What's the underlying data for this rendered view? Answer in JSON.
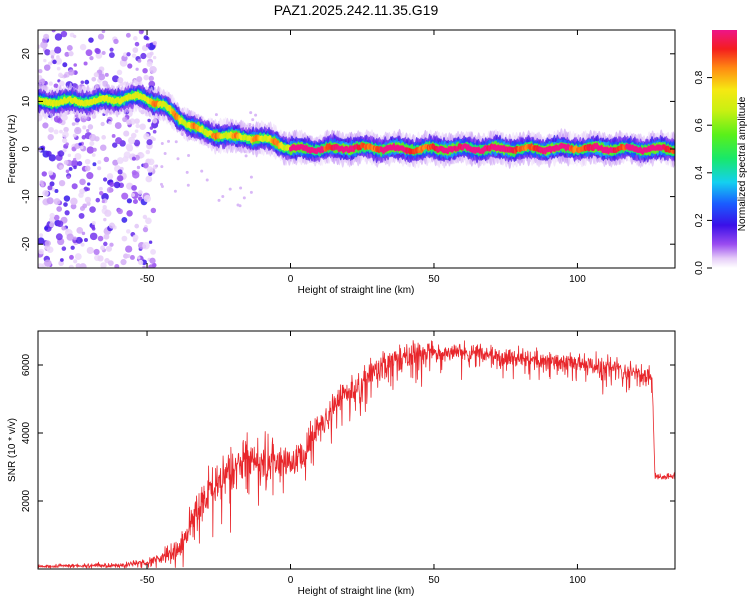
{
  "title": "PAZ1.2025.242.11.35.G19",
  "colors": {
    "signal": "#e8262b",
    "frame": "#000000",
    "background": "#ffffff",
    "noise": "#b07af0"
  },
  "chart_data": [
    {
      "type": "heatmap",
      "name": "spectrogram",
      "xlabel": "Height of straight line (km)",
      "ylabel": "Frequency (Hz)",
      "xlim": [
        -88,
        134
      ],
      "ylim": [
        -25,
        25
      ],
      "xticks": [
        -50,
        0,
        50,
        100
      ],
      "yticks": [
        -20,
        -10,
        0,
        10,
        20
      ],
      "colorbar": {
        "label": "Normalized spectral amplitude",
        "range": [
          0.0,
          1.0
        ],
        "ticks": [
          "0.0",
          "0.2",
          "0.4",
          "0.6",
          "0.8"
        ],
        "tick_values": [
          0.0,
          0.2,
          0.4,
          0.6,
          0.8
        ]
      },
      "ridge": {
        "x": [
          -88,
          -70,
          -60,
          -52,
          -48,
          -44,
          -40,
          -35,
          -30,
          -25,
          -20,
          -15,
          -10,
          -5,
          0,
          10,
          20,
          40,
          60,
          80,
          100,
          120,
          134
        ],
        "freq_hz": [
          10,
          10,
          10.5,
          11,
          10,
          9,
          7,
          5,
          3.5,
          3,
          2.5,
          2.5,
          2,
          1.5,
          0,
          0,
          0.3,
          0,
          0.1,
          0,
          0.2,
          0,
          0
        ]
      },
      "noise_region_x": [
        -88,
        -50
      ]
    },
    {
      "type": "line",
      "name": "snr",
      "xlabel": "Height of straight line (km)",
      "ylabel": "SNR (10 * v/v)",
      "xlim": [
        -88,
        134
      ],
      "ylim": [
        0,
        7000
      ],
      "xticks": [
        -50,
        0,
        50,
        100
      ],
      "yticks": [
        2000,
        4000,
        6000
      ],
      "trend": {
        "x": [
          -88,
          -60,
          -50,
          -45,
          -40,
          -37,
          -35,
          -30,
          -25,
          -20,
          -15,
          -10,
          -5,
          0,
          5,
          10,
          15,
          20,
          25,
          30,
          35,
          40,
          50,
          60,
          70,
          80,
          90,
          100,
          110,
          120,
          125,
          126,
          127,
          130,
          134
        ],
        "y": [
          80,
          110,
          200,
          350,
          500,
          900,
          1500,
          2100,
          2600,
          3000,
          3300,
          3300,
          3100,
          3000,
          3500,
          4200,
          4700,
          5200,
          5600,
          5900,
          6100,
          6250,
          6350,
          6380,
          6300,
          6200,
          6100,
          6050,
          5950,
          5800,
          5700,
          5650,
          2750,
          2700,
          2750
        ]
      },
      "noise_amplitude": {
        "x": [
          -88,
          -50,
          -40,
          -20,
          0,
          30,
          60,
          125,
          127,
          134
        ],
        "y": [
          60,
          100,
          400,
          900,
          700,
          500,
          350,
          350,
          100,
          100
        ]
      }
    }
  ]
}
